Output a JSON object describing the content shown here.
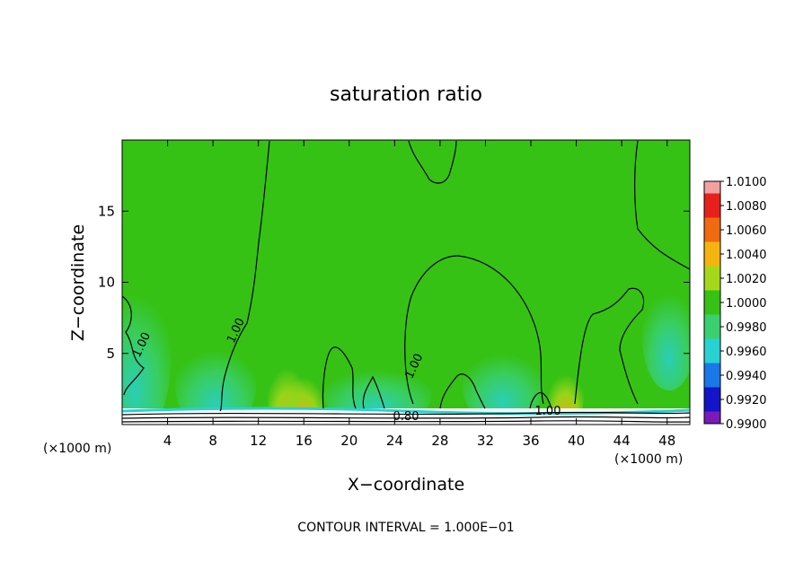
{
  "chart_data": {
    "type": "heatmap",
    "title": "saturation ratio",
    "xlabel": "X−coordinate",
    "ylabel": "Z−coordinate",
    "x_unit_left": "(×1000 m)",
    "x_unit_right": "(×1000 m)",
    "x_ticks": [
      "4",
      "8",
      "12",
      "16",
      "20",
      "24",
      "28",
      "32",
      "36",
      "40",
      "44",
      "48"
    ],
    "x_tick_values": [
      4,
      8,
      12,
      16,
      20,
      24,
      28,
      32,
      36,
      40,
      44,
      48
    ],
    "y_ticks": [
      "5",
      "10",
      "15"
    ],
    "y_tick_values": [
      5,
      10,
      15
    ],
    "xlim": [
      0,
      50
    ],
    "ylim": [
      0,
      20
    ],
    "colorbar": {
      "labels": [
        "1.0100",
        "1.0080",
        "1.0060",
        "1.0040",
        "1.0020",
        "1.0000",
        "0.9980",
        "0.9960",
        "0.9940",
        "0.9920",
        "0.9900"
      ],
      "colors": [
        "#f2a0a0",
        "#e8201c",
        "#f06a10",
        "#f4b410",
        "#a6d81a",
        "#36c214",
        "#3ad070",
        "#28d2d2",
        "#1a78e8",
        "#1414c8",
        "#7a1ab8"
      ]
    },
    "contour_labels": [
      {
        "text": "1.00",
        "x": 2.0,
        "z": 5.5
      },
      {
        "text": "1.00",
        "x": 10.3,
        "z": 6.5
      },
      {
        "text": "1.00",
        "x": 26.0,
        "z": 4.0
      },
      {
        "text": "1.00",
        "x": 37.5,
        "z": 0.7
      },
      {
        "text": "0.80",
        "x": 25.0,
        "z": 0.3
      }
    ],
    "contour_interval_text": "CONTOUR INTERVAL = 1.000E−01"
  }
}
